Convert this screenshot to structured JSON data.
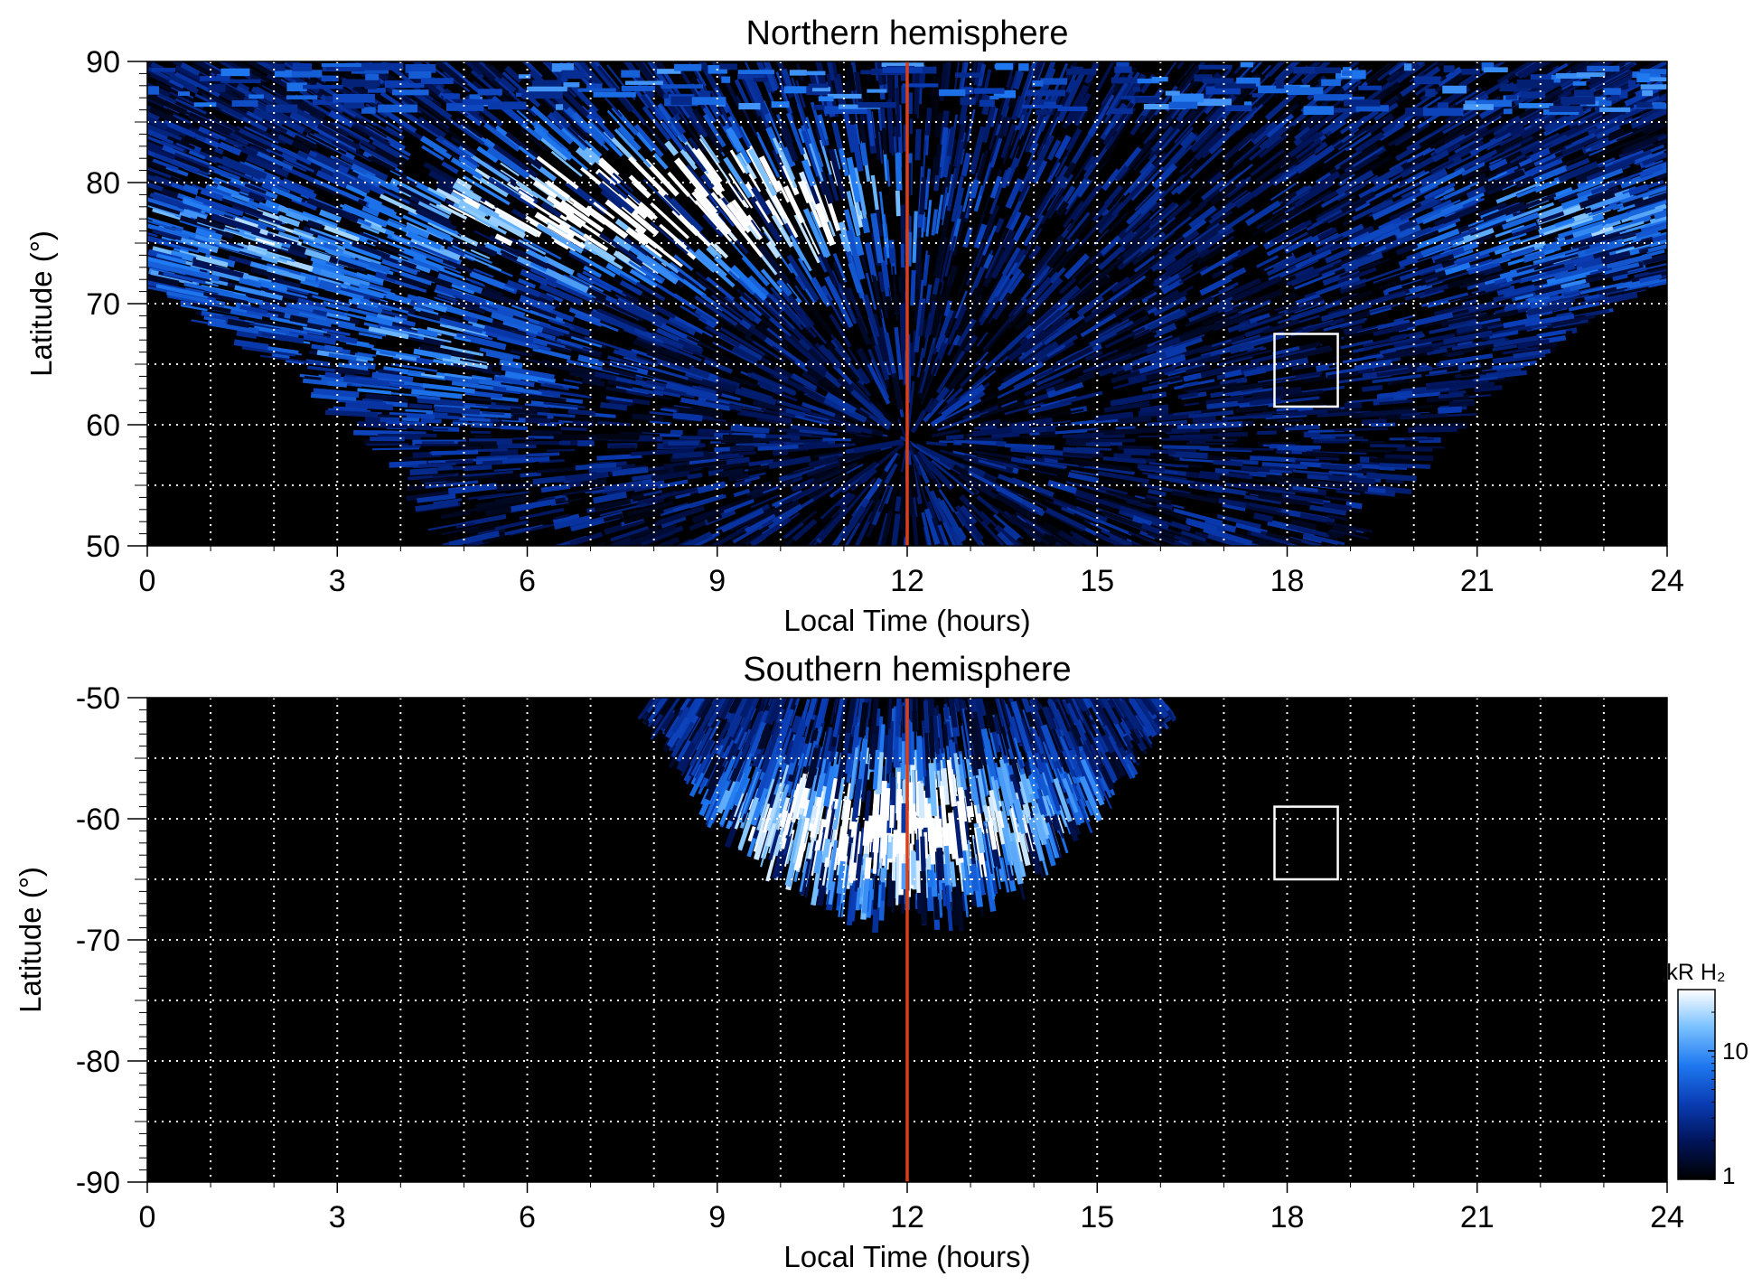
{
  "chart_data": [
    {
      "type": "heatmap",
      "title": "Northern hemisphere",
      "xlabel": "Local Time (hours)",
      "ylabel": "Latitude (°)",
      "xlim": [
        0,
        24
      ],
      "ylim": [
        50,
        90
      ],
      "xticks": [
        0,
        3,
        6,
        9,
        12,
        15,
        18,
        21,
        24
      ],
      "yticks": [
        50,
        60,
        70,
        80,
        90
      ],
      "grid": true,
      "grid_x_step": 1,
      "grid_y_step": 5,
      "noon_line_x": 12,
      "noon_line_color": "#d9401a",
      "highlight_box": {
        "x": [
          17.8,
          18.8
        ],
        "y": [
          61.5,
          67.5
        ]
      },
      "coverage": [
        {
          "lt": 0,
          "lat_min": 72
        },
        {
          "lt": 1,
          "lat_min": 68.5
        },
        {
          "lt": 2,
          "lat_min": 65.5
        },
        {
          "lt": 3,
          "lat_min": 62
        },
        {
          "lt": 4,
          "lat_min": 57
        },
        {
          "lt": 5,
          "lat_min": 50
        },
        {
          "lt": 19,
          "lat_min": 50
        },
        {
          "lt": 20,
          "lat_min": 57.5
        },
        {
          "lt": 21,
          "lat_min": 62
        },
        {
          "lt": 22,
          "lat_min": 66
        },
        {
          "lt": 23,
          "lat_min": 70
        },
        {
          "lt": 24,
          "lat_min": 72
        }
      ],
      "bright_regions": [
        {
          "lt": 1.5,
          "lat": 75,
          "level": 1.0
        },
        {
          "lt": 6.5,
          "lat": 78,
          "level": 1.6
        },
        {
          "lt": 9.5,
          "lat": 78,
          "level": 1.8
        },
        {
          "lt": 4.5,
          "lat": 66,
          "level": 0.7
        },
        {
          "lt": 22.5,
          "lat": 76,
          "level": 0.9
        }
      ]
    },
    {
      "type": "heatmap",
      "title": "Southern hemisphere",
      "xlabel": "Local Time (hours)",
      "ylabel": "Latitude (°)",
      "xlim": [
        0,
        24
      ],
      "ylim": [
        -90,
        -50
      ],
      "xticks": [
        0,
        3,
        6,
        9,
        12,
        15,
        18,
        21,
        24
      ],
      "yticks": [
        -90,
        -80,
        -70,
        -60,
        -50
      ],
      "grid": true,
      "grid_x_step": 1,
      "grid_y_step": 5,
      "noon_line_x": 12,
      "noon_line_color": "#d9401a",
      "highlight_box": {
        "x": [
          17.8,
          18.8
        ],
        "y": [
          -65,
          -59
        ]
      },
      "coverage": [
        {
          "lt": 8,
          "lat_max": -50
        },
        {
          "lt": 9,
          "lat_max": -59
        },
        {
          "lt": 10,
          "lat_max": -64
        },
        {
          "lt": 11,
          "lat_max": -67
        },
        {
          "lt": 11.5,
          "lat_max": -68
        },
        {
          "lt": 12,
          "lat_max": -66.5
        },
        {
          "lt": 12.5,
          "lat_max": -68
        },
        {
          "lt": 13,
          "lat_max": -67
        },
        {
          "lt": 14,
          "lat_max": -64
        },
        {
          "lt": 15,
          "lat_max": -58
        },
        {
          "lt": 16,
          "lat_max": -50
        }
      ],
      "bright_regions": [
        {
          "lt": 11,
          "lat": -61,
          "level": 1.4
        },
        {
          "lt": 12.8,
          "lat": -60,
          "level": 1.0
        }
      ]
    }
  ],
  "colorbar": {
    "label": "kR H₂",
    "ticks": [
      "1",
      "10"
    ],
    "scale": "log",
    "range": [
      1,
      30
    ],
    "colors": [
      "#000000",
      "#00145a",
      "#0a3cb4",
      "#1e78f0",
      "#78c0ff",
      "#ffffff"
    ]
  }
}
